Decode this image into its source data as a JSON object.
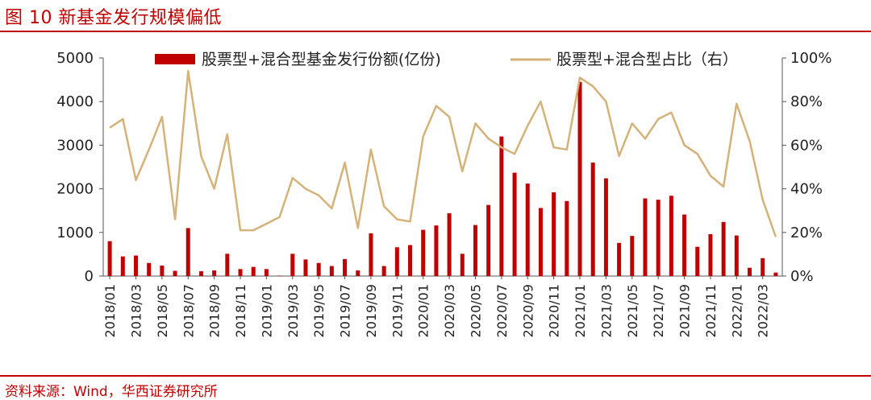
{
  "figure": {
    "title": "图 10  新基金发行规模偏低",
    "source": "资料来源：Wind，华西证券研究所"
  },
  "colors": {
    "accent": "#c00000",
    "bar": "#c00000",
    "line": "#d4b27a",
    "axis": "#555555"
  },
  "chart_data": {
    "type": "bar+line",
    "categories": [
      "2018/01",
      "2018/02",
      "2018/03",
      "2018/04",
      "2018/05",
      "2018/06",
      "2018/07",
      "2018/08",
      "2018/09",
      "2018/10",
      "2018/11",
      "2018/12",
      "2019/01",
      "2019/02",
      "2019/03",
      "2019/04",
      "2019/05",
      "2019/06",
      "2019/07",
      "2019/08",
      "2019/09",
      "2019/10",
      "2019/11",
      "2019/12",
      "2020/01",
      "2020/02",
      "2020/03",
      "2020/04",
      "2020/05",
      "2020/06",
      "2020/07",
      "2020/08",
      "2020/09",
      "2020/10",
      "2020/11",
      "2020/12",
      "2021/01",
      "2021/02",
      "2021/03",
      "2021/04",
      "2021/05",
      "2021/06",
      "2021/07",
      "2021/08",
      "2021/09",
      "2021/10",
      "2021/11",
      "2021/12",
      "2022/01",
      "2022/02",
      "2022/03",
      "2022/04"
    ],
    "xtick_labels": [
      "2018/01",
      "2018/03",
      "2018/05",
      "2018/07",
      "2018/09",
      "2018/11",
      "2019/01",
      "2019/03",
      "2019/05",
      "2019/07",
      "2019/09",
      "2019/11",
      "2020/01",
      "2020/03",
      "2020/05",
      "2020/07",
      "2020/09",
      "2020/11",
      "2021/01",
      "2021/03",
      "2021/05",
      "2021/07",
      "2021/09",
      "2021/11",
      "2022/01",
      "2022/03"
    ],
    "series": [
      {
        "name": "股票型+混合型基金发行份额(亿份)",
        "type": "bar",
        "axis": "left",
        "values": [
          800,
          450,
          470,
          300,
          240,
          120,
          1100,
          110,
          130,
          510,
          160,
          210,
          160,
          10,
          510,
          380,
          300,
          230,
          390,
          130,
          980,
          230,
          660,
          710,
          1060,
          1160,
          1440,
          510,
          1170,
          1630,
          3200,
          2370,
          2120,
          1560,
          1920,
          1720,
          4450,
          2600,
          2240,
          760,
          920,
          1780,
          1750,
          1840,
          1410,
          670,
          960,
          1240,
          930,
          190,
          410,
          80
        ]
      },
      {
        "name": "股票型+混合型占比（右）",
        "type": "line",
        "axis": "right",
        "values": [
          68,
          72,
          44,
          58,
          73,
          26,
          94,
          55,
          40,
          65,
          21,
          21,
          24,
          27,
          45,
          40,
          37,
          31,
          52,
          22,
          58,
          32,
          26,
          25,
          64,
          78,
          73,
          48,
          70,
          63,
          59,
          56,
          69,
          80,
          59,
          58,
          91,
          87,
          80,
          55,
          70,
          63,
          72,
          75,
          60,
          56,
          46,
          41,
          79,
          62,
          35,
          18
        ]
      }
    ],
    "y_left": {
      "min": 0,
      "max": 5000,
      "ticks": [
        "0",
        "1000",
        "2000",
        "3000",
        "4000",
        "5000"
      ]
    },
    "y_right": {
      "min": 0,
      "max": 100,
      "ticks": [
        "0%",
        "20%",
        "40%",
        "60%",
        "80%",
        "100%"
      ]
    },
    "grid": false,
    "legend_position": "top"
  }
}
